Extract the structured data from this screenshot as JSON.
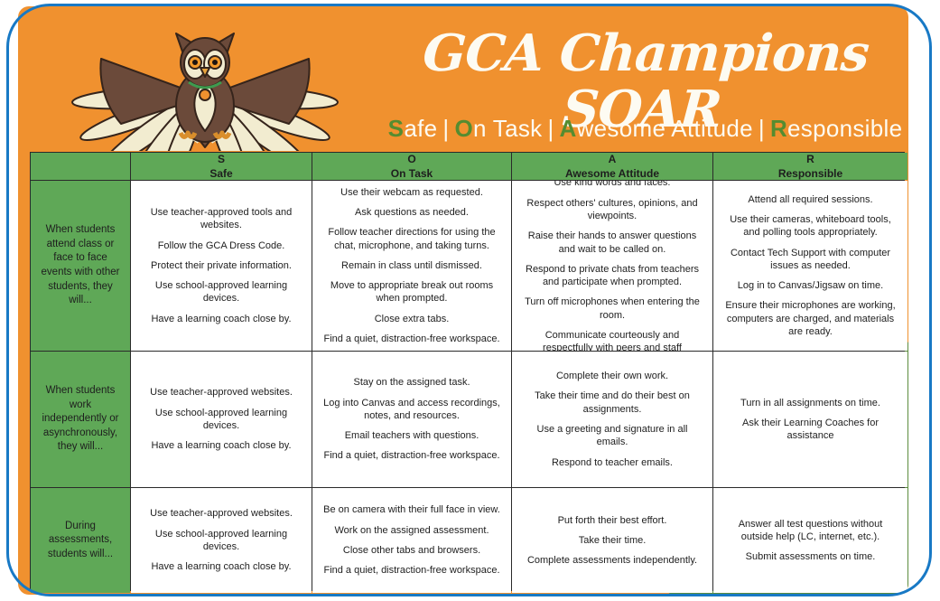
{
  "colors": {
    "poster_orange": "#F0912F",
    "table_green": "#5FA857",
    "corner_dark_green": "#5C8C3E",
    "frame_blue": "#1879C5",
    "soar_letter_green": "#558C30",
    "title_white": "#FDFBF2",
    "table_border": "#2A2A2A",
    "cell_text": "#1E1E1E"
  },
  "header": {
    "logo": "owl-mascot",
    "title": "GCA Champions SOAR",
    "separator": "|",
    "soar_words": [
      {
        "letter": "S",
        "rest": "afe"
      },
      {
        "letter": "O",
        "rest": "n Task"
      },
      {
        "letter": "A",
        "rest": "wesome Attitude"
      },
      {
        "letter": "R",
        "rest": "esponsible"
      }
    ]
  },
  "table": {
    "columns": [
      {
        "letter": "S",
        "name": "Safe"
      },
      {
        "letter": "O",
        "name": "On Task"
      },
      {
        "letter": "A",
        "name": "Awesome Attitude"
      },
      {
        "letter": "R",
        "name": "Responsible"
      }
    ],
    "rows": [
      {
        "context": "When students attend class or face to face events with other students, they will...",
        "cells": [
          [
            "Use teacher-approved tools and websites.",
            "Follow the GCA Dress Code.",
            "Protect their private information.",
            "Use school-approved learning devices.",
            "Have a learning coach close by."
          ],
          [
            "Use their webcam as requested.",
            "Ask questions as needed.",
            "Follow teacher directions for using the chat, microphone, and taking turns.",
            "Remain in class until dismissed.",
            "Move to appropriate break out rooms when prompted.",
            "Close extra tabs.",
            "Find a quiet, distraction-free workspace."
          ],
          [
            "Use kind words and faces.",
            "Respect others' cultures, opinions, and viewpoints.",
            "Raise their hands to answer questions and wait to be called on.",
            "Respond to private chats from teachers and participate when prompted.",
            "Turn off microphones when entering the room.",
            "Communicate courteously and respectfully with peers and staff"
          ],
          [
            "Attend all required sessions.",
            "Use their cameras, whiteboard tools, and polling tools appropriately.",
            "Contact Tech Support with computer issues as needed.",
            "Log in to Canvas/Jigsaw on time.",
            "Ensure their microphones are working, computers are charged, and materials are ready."
          ]
        ]
      },
      {
        "context": "When students work independently or asynchronously, they will...",
        "cells": [
          [
            "Use teacher-approved websites.",
            "Use school-approved learning devices.",
            "Have a learning coach close by."
          ],
          [
            "Stay on the assigned task.",
            "Log into Canvas and access recordings, notes, and resources.",
            "Email teachers with questions.",
            "Find a quiet, distraction-free workspace."
          ],
          [
            "Complete their own work.",
            "Take their time and do their best on assignments.",
            "Use a greeting and signature in all emails.",
            "Respond to teacher emails."
          ],
          [
            "Turn in all assignments on time.",
            "Ask their Learning Coaches for assistance"
          ]
        ]
      },
      {
        "context": "During assessments, students will...",
        "cells": [
          [
            "Use teacher-approved websites.",
            "Use school-approved learning devices.",
            "Have a learning coach close by."
          ],
          [
            "Be on camera with their full face in view.",
            "Work on the assigned assessment.",
            "Close other tabs and browsers.",
            "Find a quiet, distraction-free workspace."
          ],
          [
            "Put forth their best effort.",
            "Take their time.",
            "Complete assessments independently."
          ],
          [
            "Answer all test questions without outside help (LC, internet, etc.).",
            "Submit assessments on time."
          ]
        ]
      }
    ]
  }
}
